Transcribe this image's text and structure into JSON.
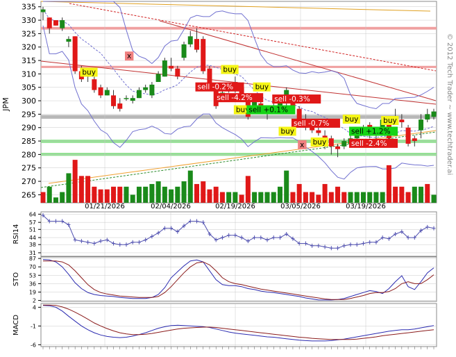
{
  "symbol": "JPM",
  "watermark": "© 2012 Tech Trader ~ www.techtrader.ai",
  "colors": {
    "up": "#1a8a1a",
    "down": "#e01818",
    "grid": "#c8c8c8",
    "blue": "#2a2ab0",
    "maroon": "#8a1a1a",
    "buy_bg": "#f5f516",
    "sell_bg": "#e01818",
    "sell_green_bg": "#16d416"
  },
  "x_labels": [
    "01/21/2026",
    "02/04/2026",
    "02/19/2026",
    "03/05/2026",
    "03/19/2026"
  ],
  "price_panel": {
    "y_ticks": [
      335,
      330,
      325,
      320,
      315,
      310,
      305,
      300,
      295,
      290,
      285,
      280,
      275,
      270,
      265
    ],
    "ylim": [
      262,
      337
    ],
    "bands": [
      {
        "y1": 326.5,
        "y2": 327.5,
        "color": "#f0a0a0"
      },
      {
        "y1": 312.2,
        "y2": 313.0,
        "color": "#f0a0a0"
      },
      {
        "y1": 293.3,
        "y2": 294.7,
        "color": "#b8b8b8"
      },
      {
        "y1": 284.3,
        "y2": 285.5,
        "color": "#90e090"
      },
      {
        "y1": 279.5,
        "y2": 280.6,
        "color": "#90e090"
      }
    ],
    "candles": [
      {
        "o": 333,
        "h": 335,
        "l": 330,
        "c": 334
      },
      {
        "o": 331,
        "h": 331,
        "l": 325,
        "c": 327
      },
      {
        "o": 330,
        "h": 330,
        "l": 328,
        "c": 328
      },
      {
        "o": 327,
        "h": 331,
        "l": 326,
        "c": 330
      },
      {
        "o": 322,
        "h": 324,
        "l": 320,
        "c": 323
      },
      {
        "o": 324,
        "h": 324,
        "l": 310,
        "c": 311
      },
      {
        "o": 311,
        "h": 313,
        "l": 307,
        "c": 308
      },
      {
        "o": 309,
        "h": 312,
        "l": 307,
        "c": 310
      },
      {
        "o": 308,
        "h": 309,
        "l": 303,
        "c": 304
      },
      {
        "o": 305,
        "h": 306,
        "l": 301,
        "c": 302
      },
      {
        "o": 302,
        "h": 305,
        "l": 302,
        "c": 304
      },
      {
        "o": 302,
        "h": 304,
        "l": 297,
        "c": 298
      },
      {
        "o": 299,
        "h": 301,
        "l": 296,
        "c": 297
      },
      {
        "o": 301,
        "h": 302,
        "l": 300,
        "c": 301
      },
      {
        "o": 300,
        "h": 302,
        "l": 299,
        "c": 301
      },
      {
        "o": 301,
        "h": 305,
        "l": 301,
        "c": 304
      },
      {
        "o": 304,
        "h": 306,
        "l": 303,
        "c": 305
      },
      {
        "o": 302,
        "h": 307,
        "l": 301,
        "c": 306
      },
      {
        "o": 307,
        "h": 311,
        "l": 307,
        "c": 310
      },
      {
        "o": 309,
        "h": 316,
        "l": 309,
        "c": 315
      },
      {
        "o": 313,
        "h": 316,
        "l": 311,
        "c": 312
      },
      {
        "o": 312,
        "h": 313,
        "l": 308,
        "c": 309
      },
      {
        "o": 316,
        "h": 322,
        "l": 315,
        "c": 321
      },
      {
        "o": 321,
        "h": 326,
        "l": 320,
        "c": 324
      },
      {
        "o": 323,
        "h": 327,
        "l": 318,
        "c": 319
      },
      {
        "o": 323,
        "h": 324,
        "l": 310,
        "c": 311
      },
      {
        "o": 312,
        "h": 313,
        "l": 304,
        "c": 305
      },
      {
        "o": 304,
        "h": 305,
        "l": 297,
        "c": 298
      },
      {
        "o": 302,
        "h": 304,
        "l": 300,
        "c": 303
      },
      {
        "o": 304,
        "h": 306,
        "l": 303,
        "c": 305
      },
      {
        "o": 307,
        "h": 309,
        "l": 303,
        "c": 304
      },
      {
        "o": 305,
        "h": 306,
        "l": 300,
        "c": 301
      },
      {
        "o": 301,
        "h": 302,
        "l": 293,
        "c": 294
      },
      {
        "o": 296,
        "h": 301,
        "l": 295,
        "c": 300
      },
      {
        "o": 299,
        "h": 300,
        "l": 295,
        "c": 296
      },
      {
        "o": 296,
        "h": 297,
        "l": 293,
        "c": 295
      },
      {
        "o": 295,
        "h": 299,
        "l": 295,
        "c": 298
      },
      {
        "o": 298,
        "h": 300,
        "l": 297,
        "c": 299
      },
      {
        "o": 299,
        "h": 305,
        "l": 298,
        "c": 304
      },
      {
        "o": 301,
        "h": 302,
        "l": 296,
        "c": 297
      },
      {
        "o": 297,
        "h": 298,
        "l": 291,
        "c": 292
      },
      {
        "o": 293,
        "h": 295,
        "l": 289,
        "c": 290
      },
      {
        "o": 291,
        "h": 292,
        "l": 288,
        "c": 289
      },
      {
        "o": 289,
        "h": 290,
        "l": 287,
        "c": 288
      },
      {
        "o": 287,
        "h": 289,
        "l": 282,
        "c": 286
      },
      {
        "o": 286,
        "h": 287,
        "l": 280,
        "c": 283
      },
      {
        "o": 283,
        "h": 284,
        "l": 279,
        "c": 282
      },
      {
        "o": 283,
        "h": 286,
        "l": 282,
        "c": 285
      },
      {
        "o": 284,
        "h": 287,
        "l": 283,
        "c": 286
      },
      {
        "o": 286,
        "h": 290,
        "l": 285,
        "c": 289
      },
      {
        "o": 288,
        "h": 291,
        "l": 287,
        "c": 290
      },
      {
        "o": 291,
        "h": 292,
        "l": 286,
        "c": 287
      },
      {
        "o": 288,
        "h": 290,
        "l": 285,
        "c": 287
      },
      {
        "o": 288,
        "h": 294,
        "l": 287,
        "c": 293
      },
      {
        "o": 292,
        "h": 293,
        "l": 285,
        "c": 286
      },
      {
        "o": 293,
        "h": 297,
        "l": 291,
        "c": 294
      },
      {
        "o": 293,
        "h": 295,
        "l": 290,
        "c": 292
      },
      {
        "o": 290,
        "h": 291,
        "l": 283,
        "c": 284
      },
      {
        "o": 286,
        "h": 287,
        "l": 283,
        "c": 285
      },
      {
        "o": 289,
        "h": 295,
        "l": 286,
        "c": 293
      },
      {
        "o": 293,
        "h": 297,
        "l": 292,
        "c": 295
      },
      {
        "o": 294,
        "h": 297,
        "l": 293,
        "c": 296
      }
    ],
    "volume_scale_max": 280,
    "volumes": [
      {
        "v": 266,
        "up": false
      },
      {
        "v": 268,
        "up": true
      },
      {
        "v": 264,
        "up": true
      },
      {
        "v": 266,
        "up": true
      },
      {
        "v": 273,
        "up": true
      },
      {
        "v": 278,
        "up": false
      },
      {
        "v": 272,
        "up": false
      },
      {
        "v": 272,
        "up": false
      },
      {
        "v": 268,
        "up": false
      },
      {
        "v": 267,
        "up": false
      },
      {
        "v": 267,
        "up": false
      },
      {
        "v": 268,
        "up": false
      },
      {
        "v": 268,
        "up": false
      },
      {
        "v": 268,
        "up": true
      },
      {
        "v": 265,
        "up": true
      },
      {
        "v": 268,
        "up": true
      },
      {
        "v": 268,
        "up": true
      },
      {
        "v": 269,
        "up": true
      },
      {
        "v": 270,
        "up": true
      },
      {
        "v": 268,
        "up": true
      },
      {
        "v": 267,
        "up": true
      },
      {
        "v": 268,
        "up": true
      },
      {
        "v": 270,
        "up": true
      },
      {
        "v": 274,
        "up": true
      },
      {
        "v": 269,
        "up": false
      },
      {
        "v": 270,
        "up": false
      },
      {
        "v": 267,
        "up": false
      },
      {
        "v": 268,
        "up": false
      },
      {
        "v": 266,
        "up": false
      },
      {
        "v": 266,
        "up": true
      },
      {
        "v": 266,
        "up": true
      },
      {
        "v": 265,
        "up": false
      },
      {
        "v": 272,
        "up": false
      },
      {
        "v": 266,
        "up": true
      },
      {
        "v": 266,
        "up": true
      },
      {
        "v": 266,
        "up": true
      },
      {
        "v": 266,
        "up": true
      },
      {
        "v": 268,
        "up": true
      },
      {
        "v": 274,
        "up": true
      },
      {
        "v": 266,
        "up": false
      },
      {
        "v": 269,
        "up": false
      },
      {
        "v": 266,
        "up": false
      },
      {
        "v": 266,
        "up": false
      },
      {
        "v": 265,
        "up": false
      },
      {
        "v": 269,
        "up": false
      },
      {
        "v": 266,
        "up": false
      },
      {
        "v": 268,
        "up": false
      },
      {
        "v": 266,
        "up": false
      },
      {
        "v": 266,
        "up": true
      },
      {
        "v": 266,
        "up": true
      },
      {
        "v": 266,
        "up": true
      },
      {
        "v": 266,
        "up": true
      },
      {
        "v": 266,
        "up": true
      },
      {
        "v": 266,
        "up": true
      },
      {
        "v": 276,
        "up": false
      },
      {
        "v": 268,
        "up": false
      },
      {
        "v": 268,
        "up": false
      },
      {
        "v": 266,
        "up": false
      },
      {
        "v": 268,
        "up": true
      },
      {
        "v": 268,
        "up": true
      },
      {
        "v": 269,
        "up": false
      },
      {
        "v": 265,
        "up": true
      }
    ],
    "signals": [
      {
        "text": "buy",
        "type": "buy",
        "i": 6,
        "y": 310
      },
      {
        "text": "x",
        "type": "x",
        "i": 13,
        "y": 316
      },
      {
        "text": "buy",
        "type": "buy",
        "i": 28,
        "y": 311
      },
      {
        "text": "sell -0.2%",
        "type": "sell",
        "i": 24,
        "y": 304.5
      },
      {
        "text": "sell -4.2%",
        "type": "sell",
        "i": 27,
        "y": 300.5
      },
      {
        "text": "buy",
        "type": "buy",
        "i": 33,
        "y": 304.5
      },
      {
        "text": "sell -0.3%",
        "type": "sell",
        "i": 36,
        "y": 300
      },
      {
        "text": "buy",
        "type": "buy",
        "i": 30,
        "y": 296
      },
      {
        "text": "sell +0.1%",
        "type": "sell_green",
        "i": 32,
        "y": 296
      },
      {
        "text": "sell -0.7%",
        "type": "sell",
        "i": 39,
        "y": 291
      },
      {
        "text": "buy",
        "type": "buy",
        "i": 37,
        "y": 288
      },
      {
        "text": "x",
        "type": "x",
        "i": 40,
        "y": 283
      },
      {
        "text": "buy",
        "type": "buy",
        "i": 42,
        "y": 284
      },
      {
        "text": "sell +1.2%",
        "type": "sell_green",
        "i": 48,
        "y": 288
      },
      {
        "text": "sell -2.4%",
        "type": "sell",
        "i": 48,
        "y": 283.5
      },
      {
        "text": "buy",
        "type": "buy",
        "i": 47,
        "y": 292.5
      },
      {
        "text": "buy",
        "type": "buy",
        "i": 53,
        "y": 292
      }
    ]
  },
  "rsi_panel": {
    "label": "RSI14",
    "y_ticks": [
      64,
      57,
      51,
      44,
      38,
      31
    ],
    "ylim": [
      28,
      66
    ],
    "values": [
      63,
      58,
      58,
      58,
      55,
      42,
      41,
      40,
      39,
      41,
      42,
      39,
      38,
      38,
      40,
      40,
      42,
      45,
      48,
      52,
      52,
      49,
      54,
      58,
      58,
      57,
      47,
      42,
      44,
      46,
      46,
      44,
      41,
      44,
      44,
      42,
      44,
      44,
      47,
      43,
      39,
      39,
      37,
      37,
      36,
      35,
      35,
      37,
      38,
      38,
      39,
      40,
      40,
      44,
      43,
      47,
      49,
      44,
      44,
      50,
      53,
      52
    ]
  },
  "sto_panel": {
    "label": "STO",
    "y_ticks": [
      87,
      70,
      53,
      36,
      19,
      2
    ],
    "ylim": [
      0,
      90
    ],
    "k": [
      85,
      84,
      80,
      70,
      55,
      38,
      26,
      18,
      14,
      12,
      11,
      10,
      8,
      7,
      6,
      6,
      6,
      8,
      14,
      28,
      48,
      60,
      72,
      82,
      84,
      80,
      62,
      44,
      34,
      32,
      32,
      30,
      26,
      24,
      21,
      19,
      18,
      16,
      14,
      12,
      10,
      7,
      5,
      3,
      3,
      3,
      4,
      6,
      10,
      14,
      18,
      22,
      20,
      16,
      26,
      40,
      52,
      30,
      24,
      40,
      58,
      68
    ],
    "d": [
      82,
      82,
      82,
      80,
      74,
      62,
      48,
      34,
      24,
      18,
      15,
      13,
      11,
      10,
      9,
      8,
      8,
      8,
      10,
      18,
      30,
      44,
      58,
      70,
      78,
      80,
      74,
      62,
      48,
      40,
      36,
      34,
      31,
      28,
      25,
      23,
      21,
      19,
      17,
      15,
      13,
      11,
      9,
      7,
      5,
      4,
      4,
      4,
      6,
      9,
      12,
      16,
      18,
      18,
      20,
      26,
      36,
      40,
      36,
      36,
      44,
      54
    ]
  },
  "macd_panel": {
    "label": "MACD",
    "y_ticks": [
      4,
      -1,
      -6
    ],
    "ylim": [
      -6.5,
      5
    ],
    "macd": [
      4.5,
      4.4,
      4.0,
      3.0,
      1.6,
      0.3,
      -1.0,
      -2.0,
      -2.8,
      -3.4,
      -3.8,
      -4.0,
      -4.1,
      -4.0,
      -3.7,
      -3.3,
      -2.8,
      -2.2,
      -1.6,
      -1.2,
      -0.9,
      -0.8,
      -0.9,
      -1.0,
      -1.1,
      -1.2,
      -1.4,
      -1.8,
      -2.2,
      -2.6,
      -2.9,
      -3.1,
      -3.3,
      -3.5,
      -3.7,
      -3.9,
      -4.0,
      -4.2,
      -4.4,
      -4.6,
      -4.8,
      -4.9,
      -5.0,
      -5.0,
      -5.0,
      -4.9,
      -4.7,
      -4.5,
      -4.2,
      -3.9,
      -3.6,
      -3.3,
      -3.0,
      -2.7,
      -2.4,
      -2.2,
      -2.0,
      -2.0,
      -1.8,
      -1.5,
      -1.2,
      -0.9
    ],
    "signal": [
      4.6,
      4.6,
      4.5,
      4.1,
      3.5,
      2.7,
      1.8,
      0.8,
      -0.2,
      -1.0,
      -1.7,
      -2.3,
      -2.8,
      -3.1,
      -3.3,
      -3.3,
      -3.2,
      -3.0,
      -2.7,
      -2.4,
      -2.1,
      -1.8,
      -1.6,
      -1.5,
      -1.4,
      -1.3,
      -1.3,
      -1.4,
      -1.6,
      -1.8,
      -2.0,
      -2.2,
      -2.4,
      -2.6,
      -2.8,
      -3.0,
      -3.2,
      -3.4,
      -3.6,
      -3.8,
      -4.0,
      -4.1,
      -4.3,
      -4.4,
      -4.5,
      -4.6,
      -4.6,
      -4.6,
      -4.6,
      -4.5,
      -4.3,
      -4.1,
      -3.9,
      -3.6,
      -3.4,
      -3.2,
      -3.0,
      -2.8,
      -2.6,
      -2.4,
      -2.2,
      -2.0
    ]
  }
}
